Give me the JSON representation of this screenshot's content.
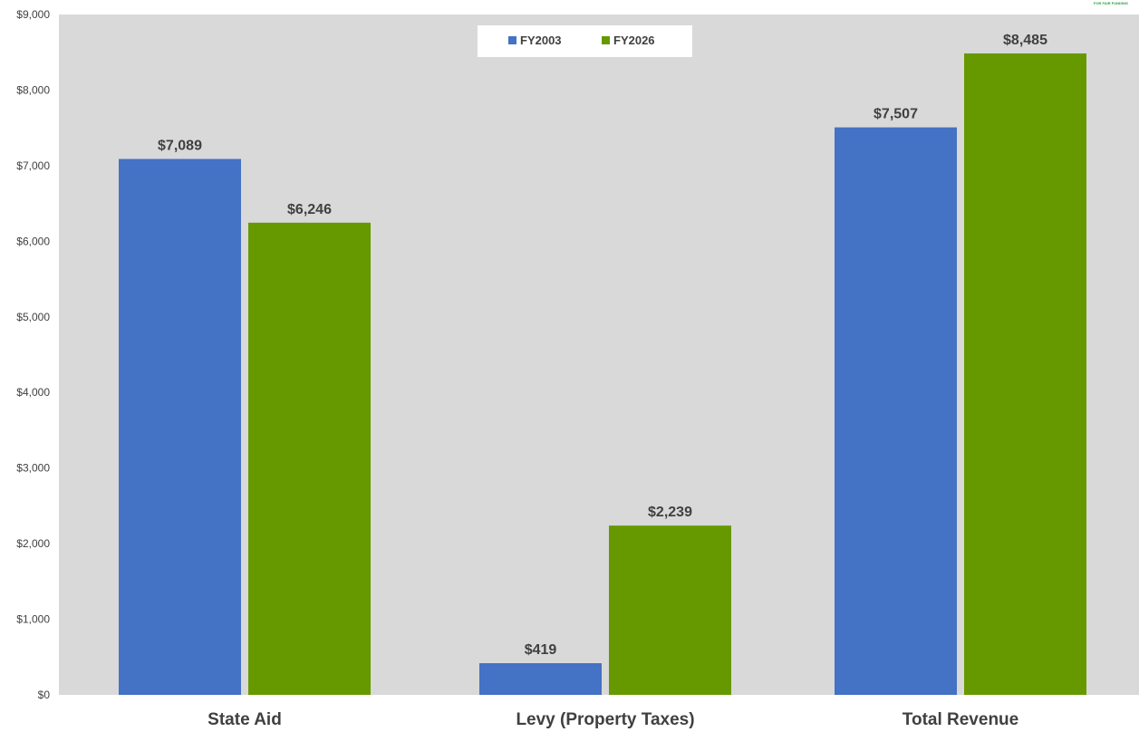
{
  "logo": {
    "text": "FOR FAIR FUNDING",
    "color": "#2e9e3e"
  },
  "colors": {
    "plot_bg": "#d9d9d9",
    "fy2003": "#4472c4",
    "fy2026": "#669900",
    "text": "#404040"
  },
  "chart_data": {
    "type": "bar",
    "title": "",
    "xlabel": "",
    "ylabel": "",
    "categories": [
      "State Aid",
      "Levy (Property Taxes)",
      "Total Revenue"
    ],
    "series": [
      {
        "name": "FY2003",
        "values": [
          7089,
          419,
          7507
        ],
        "labels": [
          "$7,089",
          "$419",
          "$7,507"
        ]
      },
      {
        "name": "FY2026",
        "values": [
          6246,
          2239,
          8485
        ],
        "labels": [
          "$6,246",
          "$2,239",
          "$8,485"
        ]
      }
    ],
    "ylim": [
      0,
      9000
    ],
    "yticks": [
      0,
      1000,
      2000,
      3000,
      4000,
      5000,
      6000,
      7000,
      8000,
      9000
    ],
    "ytick_labels": [
      "$0",
      "$1,000",
      "$2,000",
      "$3,000",
      "$4,000",
      "$5,000",
      "$6,000",
      "$7,000",
      "$8,000",
      "$9,000"
    ],
    "grid": false,
    "legend_position": "top-center"
  }
}
